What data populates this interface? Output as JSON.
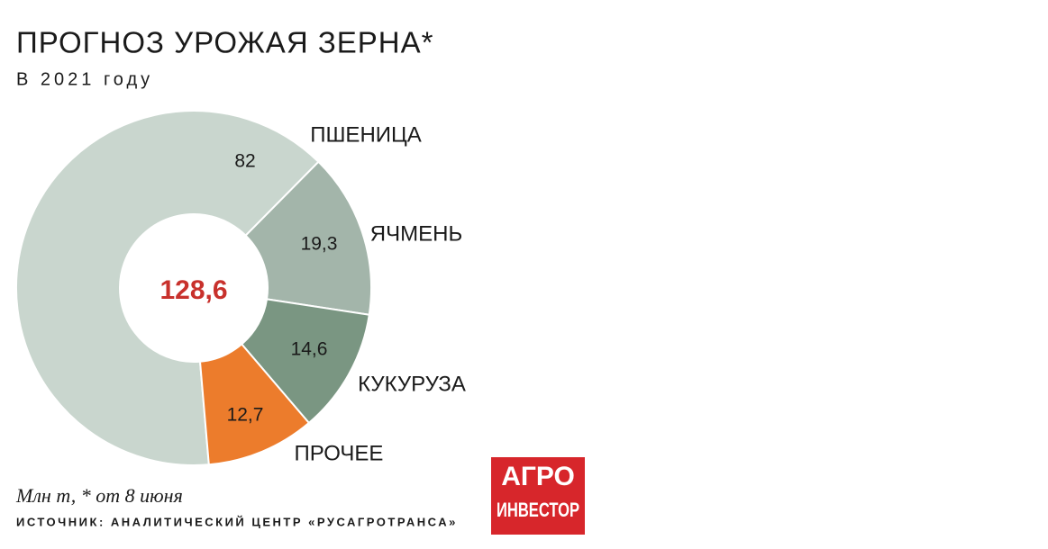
{
  "chart_data": {
    "type": "pie",
    "title": "ПРОГНОЗ УРОЖАЯ ЗЕРНА*",
    "subtitle": "В 2021 году",
    "center_text": "128,6",
    "categories": [
      "ПШЕНИЦА",
      "ЯЧМЕНЬ",
      "КУКУРУЗА",
      "ПРОЧЕЕ"
    ],
    "values": [
      82,
      19.3,
      14.6,
      12.7
    ],
    "value_labels": [
      "82",
      "19,3",
      "14,6",
      "12,7"
    ],
    "colors": [
      "#c9d6ce",
      "#a3b5aa",
      "#7a9682",
      "#ec7c2c"
    ],
    "note": "Млн т, * от 8 июня",
    "source": "ИСТОЧНИК: АНАЛИТИЧЕСКИЙ ЦЕНТР «РУСАГРОТРАНСА»"
  },
  "logo": {
    "line1": "АГРО",
    "line2": "ИНВЕСТОР"
  }
}
